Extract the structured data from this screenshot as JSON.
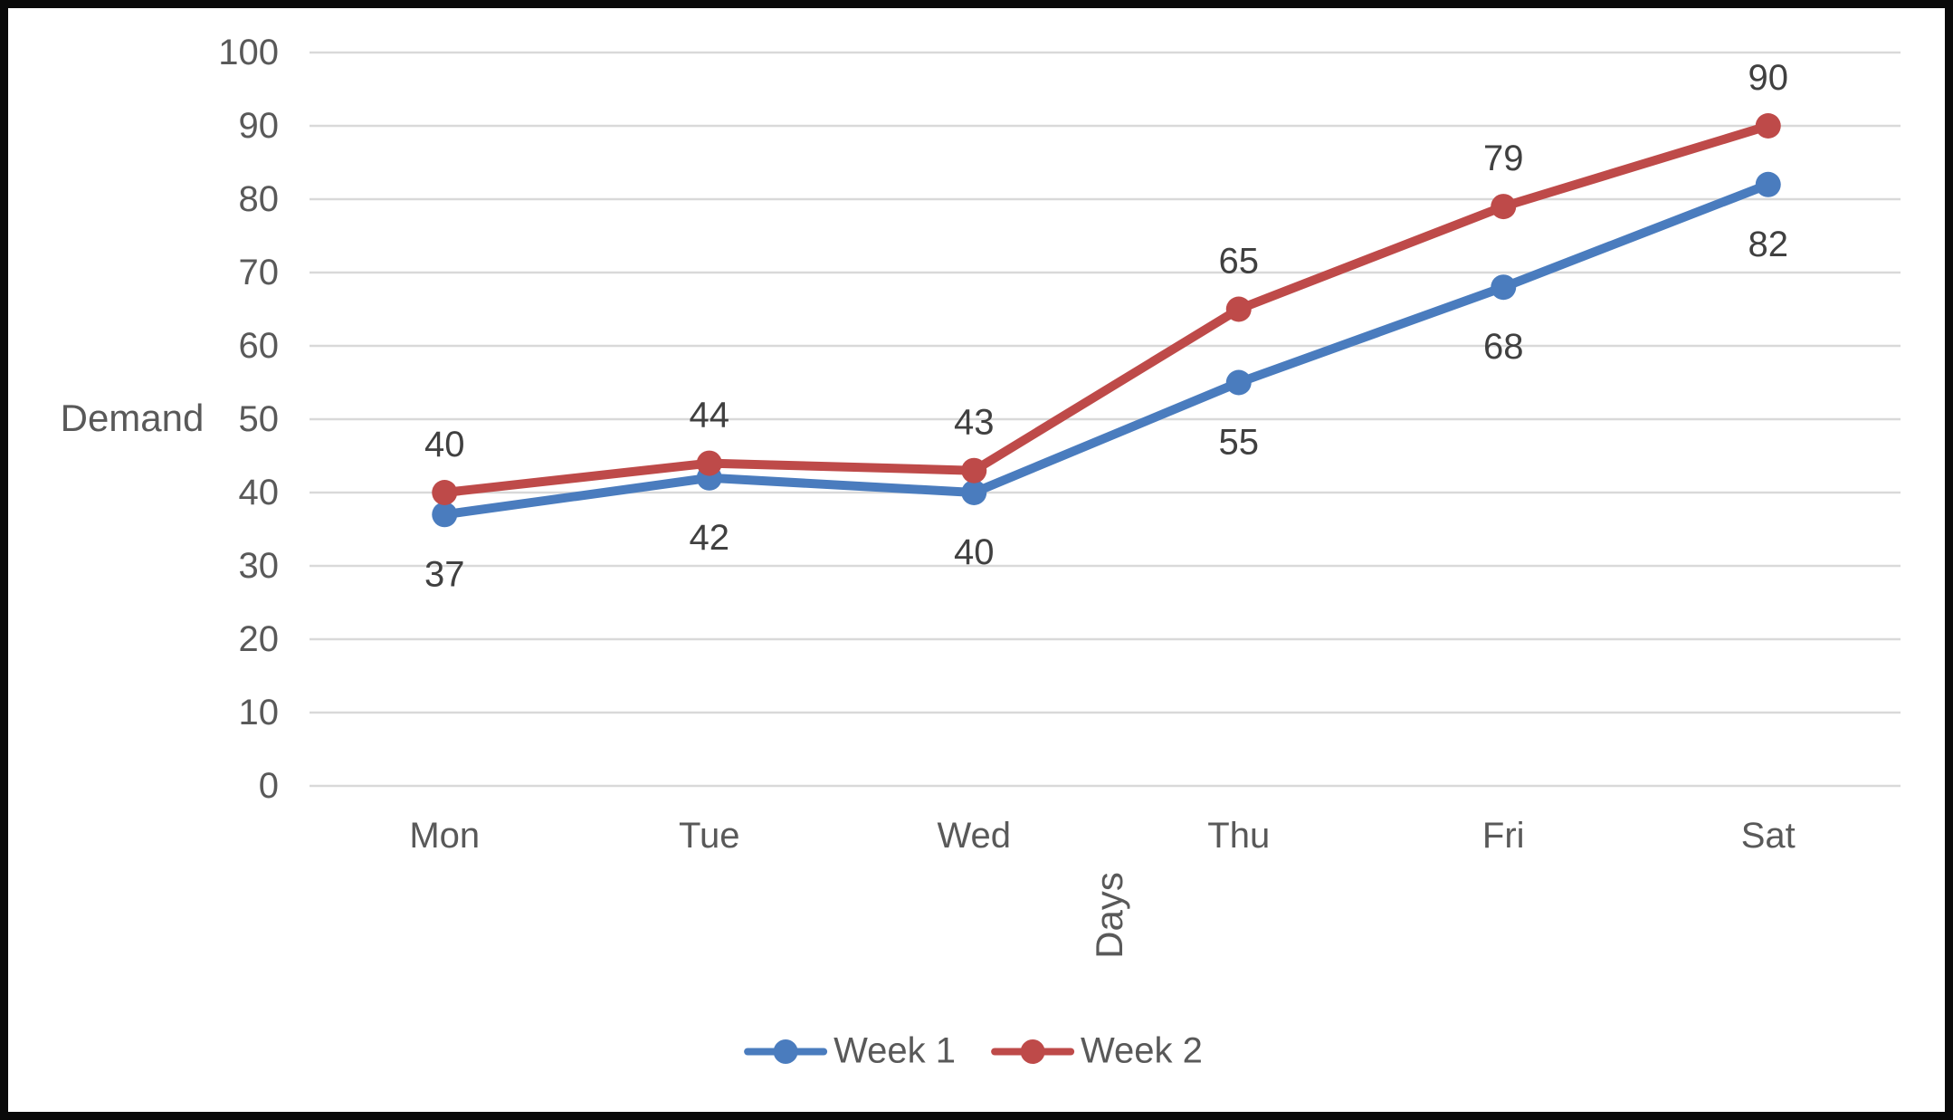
{
  "palette": {
    "background": "#ffffff",
    "frame_border": "#0a0a0a",
    "gridline": "#d9d9d9",
    "axis_text": "#595959",
    "data_label_text": "#404040",
    "week1_blue": "#4a7cbe",
    "week2_red": "#be4a49"
  },
  "chart_data": {
    "type": "line",
    "title": "",
    "xlabel": "Days",
    "ylabel": "Demand",
    "categories": [
      "Mon",
      "Tue",
      "Wed",
      "Thu",
      "Fri",
      "Sat"
    ],
    "series": [
      {
        "name": "Week 1",
        "values": [
          37,
          42,
          40,
          55,
          68,
          82
        ],
        "color": "#4a7cbe",
        "label_position": "below"
      },
      {
        "name": "Week 2",
        "values": [
          40,
          44,
          43,
          65,
          79,
          90
        ],
        "color": "#be4a49",
        "label_position": "above"
      }
    ],
    "ylim": [
      0,
      100
    ],
    "ytick_step": 10,
    "yticks": [
      0,
      10,
      20,
      30,
      40,
      50,
      60,
      70,
      80,
      90,
      100
    ],
    "grid": "horizontal",
    "data_labels": true,
    "legend_position": "bottom",
    "marker": "circle"
  }
}
